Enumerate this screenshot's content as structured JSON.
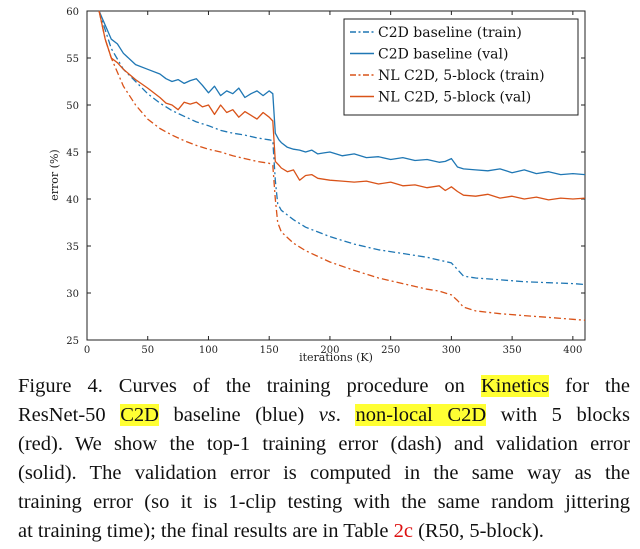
{
  "chart_data": {
    "type": "line",
    "title": "",
    "xlabel": "iterations (K)",
    "ylabel": "error (%)",
    "xlim": [
      0,
      410
    ],
    "ylim": [
      25,
      60
    ],
    "xticks": [
      0,
      50,
      100,
      150,
      200,
      250,
      300,
      350,
      400
    ],
    "yticks": [
      25,
      30,
      35,
      40,
      45,
      50,
      55,
      60
    ],
    "legend_position": "top-right",
    "series": [
      {
        "name": "C2D baseline (train)",
        "color": "#1f77b4",
        "style": "dashdot",
        "x": [
          10,
          15,
          20,
          30,
          40,
          50,
          60,
          70,
          80,
          90,
          100,
          110,
          120,
          130,
          140,
          150,
          153,
          155,
          157,
          160,
          170,
          180,
          200,
          220,
          240,
          260,
          280,
          290,
          300,
          305,
          310,
          320,
          340,
          360,
          380,
          400,
          410
        ],
        "y": [
          60,
          58,
          56,
          53.8,
          52.5,
          51.2,
          50.2,
          49.4,
          48.8,
          48.2,
          47.8,
          47.3,
          47,
          46.8,
          46.5,
          46.3,
          46.2,
          42,
          39.5,
          38.8,
          37.8,
          37,
          36,
          35.2,
          34.6,
          34.2,
          33.8,
          33.5,
          33.2,
          32.5,
          31.8,
          31.6,
          31.4,
          31.2,
          31.1,
          31,
          30.9
        ]
      },
      {
        "name": "C2D baseline (val)",
        "color": "#1f77b4",
        "style": "solid",
        "x": [
          10,
          15,
          20,
          25,
          30,
          40,
          50,
          60,
          65,
          70,
          75,
          80,
          85,
          90,
          95,
          100,
          105,
          110,
          115,
          120,
          125,
          130,
          135,
          140,
          145,
          150,
          153,
          155,
          158,
          160,
          165,
          170,
          175,
          180,
          185,
          190,
          195,
          200,
          210,
          220,
          230,
          240,
          250,
          260,
          270,
          280,
          290,
          295,
          300,
          305,
          310,
          320,
          330,
          340,
          350,
          360,
          370,
          380,
          390,
          400,
          410
        ],
        "y": [
          60,
          58.5,
          57,
          56.5,
          55.5,
          54.3,
          53.8,
          53.3,
          52.8,
          52.5,
          52.7,
          52.3,
          52.6,
          52.8,
          52.1,
          51.3,
          52,
          51,
          51.5,
          51.2,
          51.8,
          50.8,
          51.2,
          51.5,
          51,
          51.5,
          51.2,
          47,
          46.3,
          46,
          45.5,
          45.3,
          45.2,
          45,
          45.2,
          44.8,
          44.9,
          45,
          44.6,
          44.8,
          44.4,
          44.5,
          44.2,
          44.4,
          44.1,
          44.2,
          43.9,
          44,
          44.3,
          43.4,
          43.2,
          43.1,
          43,
          43.2,
          42.8,
          43.1,
          42.7,
          42.9,
          42.6,
          42.7,
          42.6
        ]
      },
      {
        "name": "NL C2D, 5-block (train)",
        "color": "#d95319",
        "style": "dashdot",
        "x": [
          10,
          15,
          20,
          30,
          40,
          50,
          60,
          70,
          80,
          90,
          100,
          110,
          120,
          130,
          140,
          150,
          153,
          155,
          157,
          160,
          170,
          180,
          200,
          220,
          240,
          260,
          280,
          290,
          300,
          305,
          310,
          320,
          340,
          360,
          380,
          400,
          410
        ],
        "y": [
          60,
          57,
          55,
          52,
          50,
          48.5,
          47.5,
          46.8,
          46.2,
          45.7,
          45.3,
          45,
          44.6,
          44.3,
          44,
          43.8,
          43.6,
          40,
          37.5,
          36.5,
          35.3,
          34.5,
          33.3,
          32.4,
          31.6,
          31,
          30.4,
          30.2,
          29.8,
          29.2,
          28.5,
          28.1,
          27.8,
          27.6,
          27.4,
          27.2,
          27.1
        ]
      },
      {
        "name": "NL C2D, 5-block (val)",
        "color": "#d95319",
        "style": "solid",
        "x": [
          10,
          15,
          20,
          25,
          30,
          40,
          50,
          60,
          65,
          70,
          75,
          80,
          85,
          90,
          95,
          100,
          105,
          110,
          115,
          120,
          125,
          130,
          135,
          140,
          145,
          150,
          153,
          155,
          158,
          160,
          165,
          170,
          175,
          180,
          185,
          190,
          200,
          210,
          220,
          230,
          240,
          250,
          260,
          270,
          280,
          290,
          295,
          300,
          305,
          310,
          320,
          330,
          340,
          350,
          360,
          370,
          380,
          390,
          400,
          410
        ],
        "y": [
          60,
          57,
          55,
          54.5,
          53.8,
          52.7,
          51.8,
          50.8,
          50.2,
          50,
          49.5,
          50.3,
          50.1,
          50.3,
          49.8,
          50,
          49,
          50,
          49.2,
          49.5,
          48.7,
          49.3,
          48.9,
          48.5,
          49.2,
          48.7,
          48.3,
          44,
          43.6,
          43.3,
          42.9,
          43.1,
          42,
          42.5,
          42.6,
          42.2,
          42,
          41.9,
          41.8,
          41.9,
          41.6,
          41.8,
          41.4,
          41.5,
          41.2,
          41.4,
          40.9,
          41.3,
          40.8,
          40.4,
          40.3,
          40.5,
          40.1,
          40.3,
          40,
          40.2,
          39.9,
          40.1,
          40,
          40.1
        ]
      }
    ]
  },
  "caption": {
    "l1_a": "Figure 4. Curves of the training procedure on ",
    "l1_hl": "Kinetics",
    "l1_b": " for the",
    "l2_a": "ResNet-50 ",
    "l2_hl1": "C2D",
    "l2_b": " baseline (blue) ",
    "l2_em": "vs",
    "l2_c": ". ",
    "l2_hl2": "non-local C2D",
    "l2_d": " with 5 blocks",
    "l3": "(red). We show the top-1 training error (dash) and validation error",
    "l4": "(solid). The validation error is computed in the same way as the",
    "l5": "training error (so it is 1-clip testing with the same random jittering",
    "l6_a": "at training time); the final results are in Table ",
    "l6_ref": "2c",
    "l6_b": " (R50, 5-block)."
  }
}
